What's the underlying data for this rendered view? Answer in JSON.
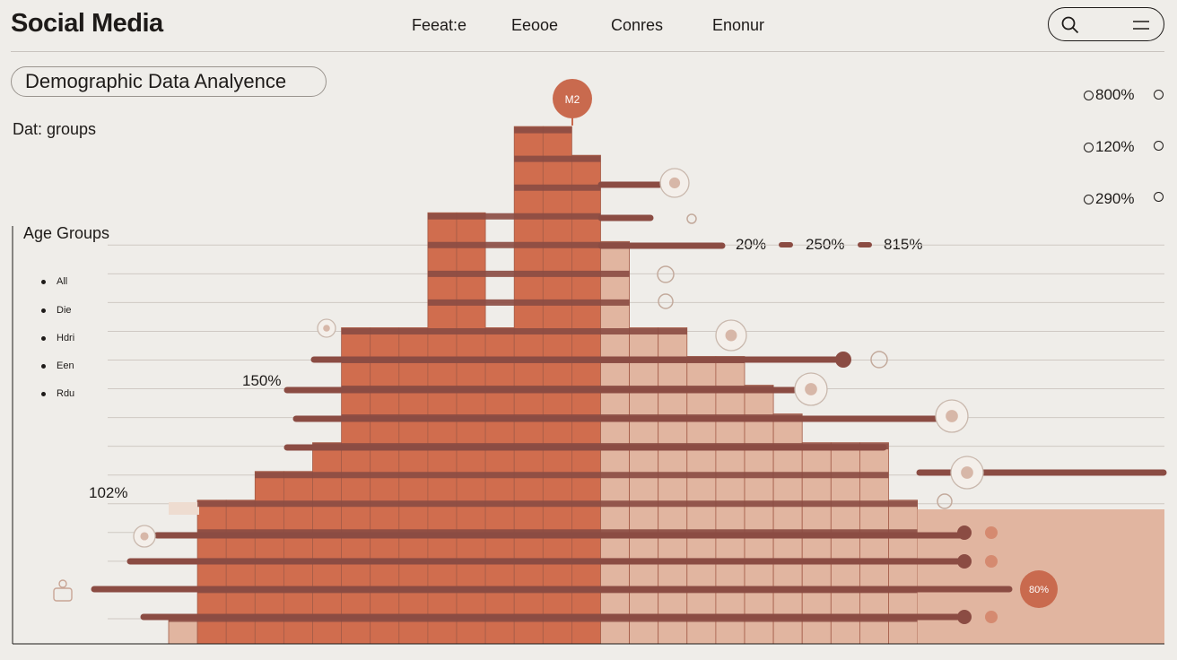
{
  "header": {
    "brand": "Social Media",
    "nav": [
      "Feeat:e",
      "Eeooe",
      "Conres",
      "Enonur"
    ]
  },
  "page": {
    "title": "Demographic Data Analyence",
    "subtitle": "Dat: groups"
  },
  "legend": {
    "title": "Age Groups",
    "items": [
      "All",
      "Die",
      "Hdri",
      "Een",
      "Rdu"
    ]
  },
  "right_stats": [
    "800%",
    "120%",
    "290%"
  ],
  "mid_legend": [
    "20%",
    "250%",
    "815%"
  ],
  "annotations": {
    "left_upper": "150%",
    "left_lower": "102%",
    "top_marker": "M2",
    "bottom_marker": "80%"
  },
  "colors": {
    "dark": "#d06d4e",
    "light": "#e1b5a0",
    "palest": "#eedcd0",
    "stripe": "#8b4c43",
    "bg": "#efede9"
  },
  "icons": {
    "search": "search-icon",
    "menu": "menu-icon",
    "person": "person-icon",
    "play": "play-icon",
    "robot": "robot-icon",
    "bowtie": "bowtie-icon"
  },
  "chart_data": {
    "type": "bar",
    "columns": [
      {
        "levels": [
          1
        ],
        "tone": "light"
      },
      {
        "levels": [
          5
        ],
        "tone": "dark"
      },
      {
        "levels": [
          5
        ],
        "tone": "dark"
      },
      {
        "levels": [
          6
        ],
        "tone": "dark"
      },
      {
        "levels": [
          6
        ],
        "tone": "dark"
      },
      {
        "levels": [
          7
        ],
        "tone": "dark"
      },
      {
        "levels": [
          11
        ],
        "tone": "dark"
      },
      {
        "levels": [
          11
        ],
        "tone": "dark"
      },
      {
        "levels": [
          11
        ],
        "tone": "dark"
      },
      {
        "levels": [
          15
        ],
        "tone": "dark"
      },
      {
        "levels": [
          15
        ],
        "tone": "dark"
      },
      {
        "levels": [
          11
        ],
        "tone": "dark"
      },
      {
        "levels": [
          18
        ],
        "tone": "dark"
      },
      {
        "levels": [
          18
        ],
        "tone": "dark"
      },
      {
        "levels": [
          17
        ],
        "tone": "dark"
      },
      {
        "levels": [
          14
        ],
        "tone": "light"
      },
      {
        "levels": [
          11
        ],
        "tone": "light"
      },
      {
        "levels": [
          11
        ],
        "tone": "light"
      },
      {
        "levels": [
          10
        ],
        "tone": "light"
      },
      {
        "levels": [
          10
        ],
        "tone": "light"
      },
      {
        "levels": [
          9
        ],
        "tone": "light"
      },
      {
        "levels": [
          8
        ],
        "tone": "light"
      },
      {
        "levels": [
          7
        ],
        "tone": "light"
      },
      {
        "levels": [
          7
        ],
        "tone": "light"
      },
      {
        "levels": [
          7
        ],
        "tone": "light"
      },
      {
        "levels": [
          5
        ],
        "tone": "light"
      }
    ],
    "level_max": 18,
    "grid": true
  }
}
